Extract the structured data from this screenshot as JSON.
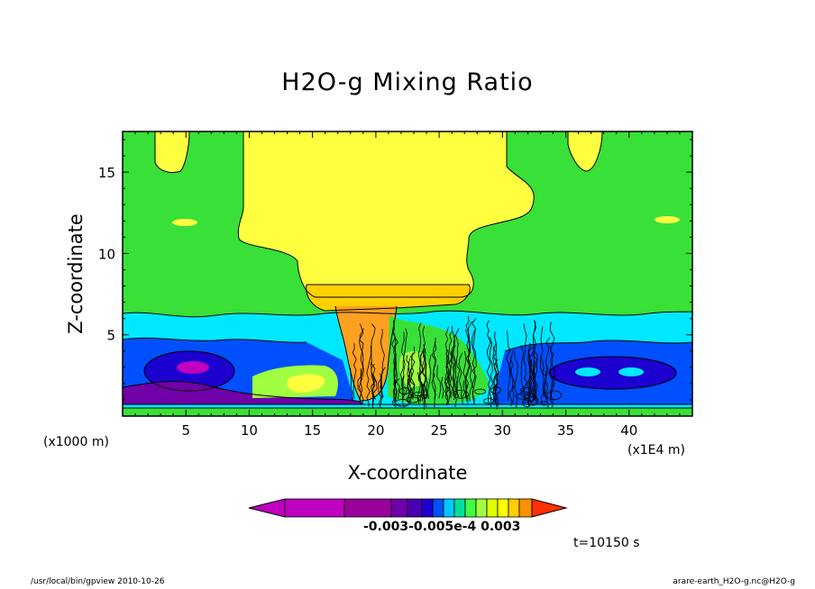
{
  "title": "H2O-g Mixing Ratio",
  "xlabel": "X-coordinate",
  "ylabel": "Z-coordinate",
  "x_unit_left": "(x1000 m)",
  "x_unit_right": "(x1E4 m)",
  "time_label": "t=10150 s",
  "footer_left": "/usr/local/bin/gpview  2010-10-26",
  "footer_right": "arare-earth_H2O-g.nc@H2O-g",
  "colorbar": {
    "colors": [
      "#c000c0",
      "#9a009a",
      "#7000a8",
      "#4800b0",
      "#1c00d0",
      "#0050ff",
      "#00c8ff",
      "#00e0a0",
      "#40ff40",
      "#a0ff40",
      "#e0ff00",
      "#ffff00",
      "#ffd000",
      "#ff9000",
      "#ff3000"
    ],
    "labels": [
      "-0.003",
      "-0.005e-4",
      "0.003"
    ],
    "label_text": "-0.003-0.005e-4   0.003"
  },
  "chart_data": {
    "type": "heatmap",
    "title": "H2O-g Mixing Ratio",
    "xlabel": "X-coordinate",
    "ylabel": "Z-coordinate",
    "xlim": [
      0,
      45
    ],
    "ylim": [
      0,
      17.5
    ],
    "xticks": [
      5,
      10,
      15,
      20,
      25,
      30,
      35,
      40
    ],
    "yticks": [
      5,
      10,
      15
    ],
    "colors": {
      "magenta": "#c000c0",
      "purple": "#7000a8",
      "violet": "#5000a0",
      "deep_blue": "#1c00d0",
      "blue": "#0050ff",
      "cyan": "#00e8ff",
      "green": "#38e038",
      "light_green": "#a0ff40",
      "yellow": "#ffff40",
      "gold": "#ffd000",
      "orange": "#ffa020"
    },
    "regions": [
      {
        "name": "upper-green",
        "color": "green",
        "z": [
          6.5,
          17.5
        ]
      },
      {
        "name": "cyan-band",
        "color": "cyan",
        "z": [
          3.8,
          6.5
        ]
      },
      {
        "name": "blue-band",
        "color": "blue",
        "z": [
          1.5,
          4.6
        ]
      },
      {
        "name": "anvil-yellow",
        "color": "yellow",
        "x": [
          9.5,
          31.5
        ],
        "z": [
          8,
          17.5
        ]
      },
      {
        "name": "core-orange",
        "color": "orange",
        "x": [
          16.5,
          22.5
        ],
        "z": [
          1,
          7
        ]
      },
      {
        "name": "purple-bottom",
        "color": "purple",
        "z": [
          0.5,
          1.8
        ]
      }
    ]
  }
}
